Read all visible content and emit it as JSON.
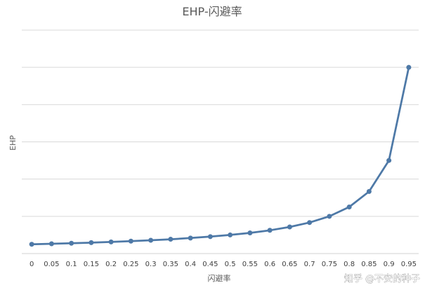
{
  "chart_data": {
    "type": "line",
    "title": "EHP-闪避率",
    "xlabel": "闪避率",
    "ylabel": "EHP",
    "categories": [
      "0",
      "0.05",
      "0.1",
      "0.15",
      "0.2",
      "0.25",
      "0.3",
      "0.35",
      "0.4",
      "0.45",
      "0.5",
      "0.55",
      "0.6",
      "0.65",
      "0.7",
      "0.75",
      "0.8",
      "0.85",
      "0.9",
      "0.95"
    ],
    "series": [
      {
        "values": [
          1,
          1.053,
          1.111,
          1.176,
          1.25,
          1.333,
          1.429,
          1.538,
          1.667,
          1.818,
          2,
          2.222,
          2.5,
          2.857,
          3.333,
          4,
          5,
          6.667,
          10,
          20
        ]
      }
    ],
    "ylim": [
      0,
      24
    ],
    "grid": true,
    "legend": "none",
    "color": "#4E79A7"
  },
  "watermark": "知乎 @不安的种子"
}
